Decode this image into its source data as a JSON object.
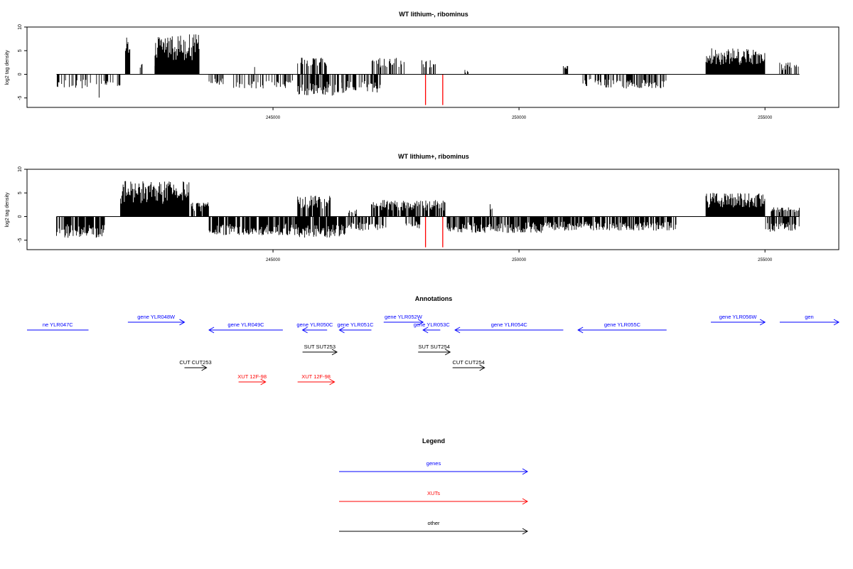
{
  "colors": {
    "gene": "#0000ff",
    "xut": "#ff0000",
    "other": "#000000",
    "signal": "#000000",
    "marker": "#ff0000",
    "axis": "#000000",
    "background": "#ffffff"
  },
  "chart_data": [
    {
      "type": "bar",
      "title": "WT lithium-, ribominus",
      "ylabel": "log2 tag density",
      "xlim": [
        240000,
        256500
      ],
      "ylim": [
        -7,
        10
      ],
      "yticks": [
        -5,
        0,
        5,
        10
      ],
      "xticks": [
        245000,
        250000,
        255000
      ],
      "xtick_labels": [
        "245000",
        "250000",
        "255000"
      ],
      "ytick_labels": [
        "-5",
        "0",
        "5",
        "10"
      ],
      "baseline": [
        240600,
        255700
      ],
      "segments": [
        {
          "x0": 240600,
          "x1": 241300,
          "sign": -1,
          "amp": 3,
          "density": 0.35
        },
        {
          "x0": 241400,
          "x1": 241500,
          "sign": -1,
          "amp": 5,
          "density": 0.5
        },
        {
          "x0": 241500,
          "x1": 241900,
          "sign": -1,
          "amp": 2.5,
          "density": 0.35
        },
        {
          "x0": 242000,
          "x1": 242100,
          "sign": 1,
          "amp": 8,
          "density": 1
        },
        {
          "x0": 242300,
          "x1": 242600,
          "sign": 1,
          "amp": 2.5,
          "density": 0.35
        },
        {
          "x0": 242600,
          "x1": 243500,
          "sign": 1,
          "amp": 8.5,
          "density": 1
        },
        {
          "x0": 243700,
          "x1": 244000,
          "sign": -1,
          "amp": 2.5,
          "density": 0.4
        },
        {
          "x0": 244200,
          "x1": 245400,
          "sign": -1,
          "amp": 3,
          "density": 0.4
        },
        {
          "x0": 244600,
          "x1": 244700,
          "sign": 1,
          "amp": 3.5,
          "density": 0.3
        },
        {
          "x0": 245500,
          "x1": 246100,
          "sign": 1,
          "amp": 3.5,
          "density": 0.6
        },
        {
          "x0": 245500,
          "x1": 246400,
          "sign": -1,
          "amp": 4.5,
          "density": 0.7
        },
        {
          "x0": 246400,
          "x1": 247200,
          "sign": -1,
          "amp": 4,
          "density": 0.6
        },
        {
          "x0": 247000,
          "x1": 247700,
          "sign": 1,
          "amp": 3.5,
          "density": 0.45
        },
        {
          "x0": 248000,
          "x1": 248300,
          "sign": 1,
          "amp": 3,
          "density": 0.4
        },
        {
          "x0": 248900,
          "x1": 249000,
          "sign": 1,
          "amp": 1,
          "density": 0.5
        },
        {
          "x0": 250900,
          "x1": 251000,
          "sign": 1,
          "amp": 2,
          "density": 0.5
        },
        {
          "x0": 251300,
          "x1": 251700,
          "sign": -1,
          "amp": 2.5,
          "density": 0.45
        },
        {
          "x0": 251700,
          "x1": 253000,
          "sign": -1,
          "amp": 3,
          "density": 0.5
        },
        {
          "x0": 253800,
          "x1": 255000,
          "sign": 1,
          "amp": 5.5,
          "density": 1
        },
        {
          "x0": 255300,
          "x1": 255700,
          "sign": 1,
          "amp": 2.5,
          "density": 0.45
        }
      ],
      "markers": [
        {
          "x": 248100,
          "y": -6.5
        },
        {
          "x": 248450,
          "y": -6.5
        }
      ]
    },
    {
      "type": "bar",
      "title": "WT lithium+, ribominus",
      "ylabel": "log2 tag density",
      "xlim": [
        240000,
        256500
      ],
      "ylim": [
        -7,
        10
      ],
      "yticks": [
        -5,
        0,
        5,
        10
      ],
      "xticks": [
        245000,
        250000,
        255000
      ],
      "xtick_labels": [
        "245000",
        "250000",
        "255000"
      ],
      "ytick_labels": [
        "-5",
        "0",
        "5",
        "10"
      ],
      "baseline": [
        240600,
        255700
      ],
      "segments": [
        {
          "x0": 240600,
          "x1": 241600,
          "sign": -1,
          "amp": 4.5,
          "density": 0.8
        },
        {
          "x0": 241900,
          "x1": 243300,
          "sign": 1,
          "amp": 7.5,
          "density": 1
        },
        {
          "x0": 243300,
          "x1": 243700,
          "sign": 1,
          "amp": 3,
          "density": 0.8
        },
        {
          "x0": 243700,
          "x1": 245500,
          "sign": -1,
          "amp": 4,
          "density": 0.8
        },
        {
          "x0": 245500,
          "x1": 246200,
          "sign": 1,
          "amp": 4.5,
          "density": 0.8
        },
        {
          "x0": 245500,
          "x1": 246500,
          "sign": -1,
          "amp": 4.5,
          "density": 0.9
        },
        {
          "x0": 246500,
          "x1": 247300,
          "sign": -1,
          "amp": 3,
          "density": 0.6
        },
        {
          "x0": 246500,
          "x1": 246700,
          "sign": 1,
          "amp": 1.5,
          "density": 0.4
        },
        {
          "x0": 247000,
          "x1": 248500,
          "sign": 1,
          "amp": 3.5,
          "density": 0.8
        },
        {
          "x0": 247700,
          "x1": 248000,
          "sign": -1,
          "amp": 2.5,
          "density": 0.6
        },
        {
          "x0": 248500,
          "x1": 250500,
          "sign": -1,
          "amp": 3.5,
          "density": 0.8
        },
        {
          "x0": 249400,
          "x1": 249500,
          "sign": 1,
          "amp": 3,
          "density": 0.5
        },
        {
          "x0": 250500,
          "x1": 253200,
          "sign": -1,
          "amp": 3,
          "density": 0.8
        },
        {
          "x0": 253800,
          "x1": 255000,
          "sign": 1,
          "amp": 5,
          "density": 1
        },
        {
          "x0": 255000,
          "x1": 255200,
          "sign": -1,
          "amp": 3.5,
          "density": 0.6
        },
        {
          "x0": 255100,
          "x1": 255700,
          "sign": 1,
          "amp": 2,
          "density": 0.7
        },
        {
          "x0": 255200,
          "x1": 255700,
          "sign": -1,
          "amp": 3,
          "density": 0.7
        }
      ],
      "markers": [
        {
          "x": 248100,
          "y": -6.5
        },
        {
          "x": 248450,
          "y": -6.5
        }
      ]
    }
  ],
  "annotations": {
    "title": "Annotations",
    "features": [
      {
        "label": "ne YLR047C",
        "kind": "gene",
        "strand": "-",
        "start": 240000,
        "end": 241250,
        "row": 1
      },
      {
        "label": "gene YLR048W",
        "kind": "gene",
        "strand": "+",
        "start": 242050,
        "end": 243200,
        "row": 0
      },
      {
        "label": "gene YLR049C",
        "kind": "gene",
        "strand": "-",
        "start": 243700,
        "end": 245200,
        "row": 1
      },
      {
        "label": "gene YLR050C",
        "kind": "gene",
        "strand": "-",
        "start": 245600,
        "end": 246100,
        "row": 1
      },
      {
        "label": "gene YLR051C",
        "kind": "gene",
        "strand": "-",
        "start": 246350,
        "end": 247000,
        "row": 1
      },
      {
        "label": "gene YLR052W",
        "kind": "gene",
        "strand": "+",
        "start": 247250,
        "end": 248050,
        "row": 0
      },
      {
        "label": "gene YLR053C",
        "kind": "gene",
        "strand": "-",
        "start": 248050,
        "end": 248400,
        "row": 1
      },
      {
        "label": "gene YLR054C",
        "kind": "gene",
        "strand": "-",
        "start": 248700,
        "end": 250900,
        "row": 1
      },
      {
        "label": "gene YLR055C",
        "kind": "gene",
        "strand": "-",
        "start": 251200,
        "end": 253000,
        "row": 1
      },
      {
        "label": "gene YLR056W",
        "kind": "gene",
        "strand": "+",
        "start": 253900,
        "end": 255000,
        "row": 0
      },
      {
        "label": "gen",
        "kind": "gene",
        "strand": "+",
        "start": 255300,
        "end": 256500,
        "row": 0
      },
      {
        "label": "SUT SUT253",
        "kind": "other",
        "strand": "+",
        "start": 245600,
        "end": 246300,
        "row": 2
      },
      {
        "label": "SUT SUT254",
        "kind": "other",
        "strand": "+",
        "start": 247950,
        "end": 248600,
        "row": 2
      },
      {
        "label": "CUT CUT253",
        "kind": "other",
        "strand": "+",
        "start": 243200,
        "end": 243650,
        "row": 3
      },
      {
        "label": "CUT CUT254",
        "kind": "other",
        "strand": "+",
        "start": 248650,
        "end": 249300,
        "row": 3
      },
      {
        "label": "XUT 12F-98",
        "kind": "xut",
        "strand": "+",
        "start": 244300,
        "end": 244850,
        "row": 4
      },
      {
        "label": "XUT 12F-98",
        "kind": "xut",
        "strand": "+",
        "start": 245500,
        "end": 246250,
        "row": 4
      }
    ]
  },
  "legend": {
    "title": "Legend",
    "items": [
      {
        "label": "genes",
        "kind": "gene"
      },
      {
        "label": "XUTs",
        "kind": "xut"
      },
      {
        "label": "other",
        "kind": "other"
      }
    ]
  }
}
